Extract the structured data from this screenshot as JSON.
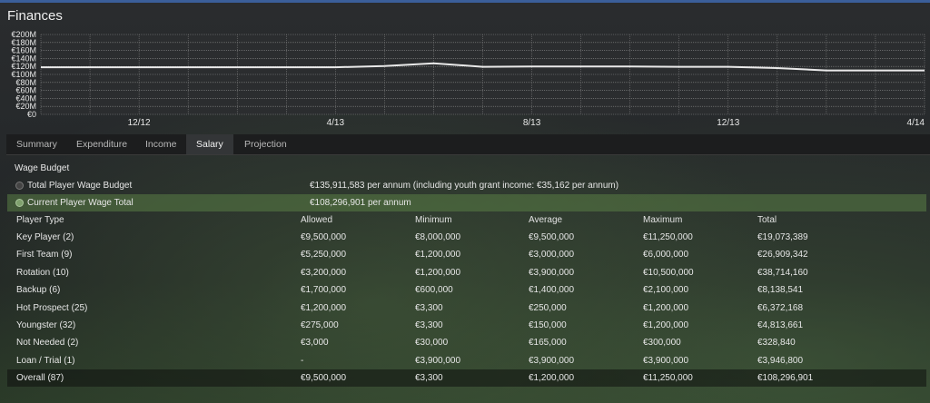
{
  "panel": {
    "title": "Finances"
  },
  "chart_data": {
    "type": "line",
    "title": "",
    "y_ticks": [
      "€200M",
      "€180M",
      "€160M",
      "€140M",
      "€120M",
      "€100M",
      "€80M",
      "€60M",
      "€40M",
      "€20M",
      "€0"
    ],
    "x_ticks": [
      "12/12",
      "4/13",
      "8/13",
      "12/13",
      "4/14"
    ],
    "ylim": [
      0,
      200
    ],
    "grid": true,
    "series": [
      {
        "values": [
          {
            "x": "2012-10",
            "y": 118
          },
          {
            "x": "2012-11",
            "y": 118
          },
          {
            "x": "2012-12",
            "y": 118
          },
          {
            "x": "2013-01",
            "y": 118
          },
          {
            "x": "2013-02",
            "y": 118
          },
          {
            "x": "2013-03",
            "y": 118
          },
          {
            "x": "2013-04",
            "y": 118
          },
          {
            "x": "2013-05",
            "y": 121
          },
          {
            "x": "2013-06",
            "y": 128
          },
          {
            "x": "2013-07",
            "y": 119
          },
          {
            "x": "2013-08",
            "y": 120
          },
          {
            "x": "2013-09",
            "y": 120
          },
          {
            "x": "2013-10",
            "y": 120
          },
          {
            "x": "2013-11",
            "y": 119
          },
          {
            "x": "2013-12",
            "y": 119
          },
          {
            "x": "2014-01",
            "y": 116
          },
          {
            "x": "2014-02",
            "y": 110
          },
          {
            "x": "2014-03",
            "y": 110
          },
          {
            "x": "2014-04",
            "y": 110
          }
        ]
      }
    ],
    "colors": {
      "line": "#e9e9e9",
      "grid": "#8a8a8a",
      "plot_bg": "#2b2d2f"
    }
  },
  "tabs": [
    {
      "label": "Summary",
      "active": false
    },
    {
      "label": "Expenditure",
      "active": false
    },
    {
      "label": "Income",
      "active": false
    },
    {
      "label": "Salary",
      "active": true
    },
    {
      "label": "Projection",
      "active": false
    }
  ],
  "wage_budget": {
    "title": "Wage Budget",
    "total_label": "Total Player Wage Budget",
    "total_value": "€135,911,583 per annum (including youth grant income: €35,162 per annum)",
    "current_label": "Current Player Wage Total",
    "current_value": "€108,296,901 per annum"
  },
  "table": {
    "headers": [
      "Player Type",
      "Allowed",
      "Minimum",
      "Average",
      "Maximum",
      "Total"
    ],
    "rows": [
      [
        "Key Player (2)",
        "€9,500,000",
        "€8,000,000",
        "€9,500,000",
        "€11,250,000",
        "€19,073,389"
      ],
      [
        "First Team (9)",
        "€5,250,000",
        "€1,200,000",
        "€3,000,000",
        "€6,000,000",
        "€26,909,342"
      ],
      [
        "Rotation (10)",
        "€3,200,000",
        "€1,200,000",
        "€3,900,000",
        "€10,500,000",
        "€38,714,160"
      ],
      [
        "Backup (6)",
        "€1,700,000",
        "€600,000",
        "€1,400,000",
        "€2,100,000",
        "€8,138,541"
      ],
      [
        "Hot Prospect (25)",
        "€1,200,000",
        "€3,300",
        "€250,000",
        "€1,200,000",
        "€6,372,168"
      ],
      [
        "Youngster (32)",
        "€275,000",
        "€3,300",
        "€150,000",
        "€1,200,000",
        "€4,813,661"
      ],
      [
        "Not Needed (2)",
        "€3,000",
        "€30,000",
        "€165,000",
        "€300,000",
        "€328,840"
      ],
      [
        "Loan / Trial (1)",
        "-",
        "€3,900,000",
        "€3,900,000",
        "€3,900,000",
        "€3,946,800"
      ]
    ],
    "overall": [
      "Overall (87)",
      "€9,500,000",
      "€3,300",
      "€1,200,000",
      "€11,250,000",
      "€108,296,901"
    ]
  },
  "colors": {
    "accent": "#3b5f9a",
    "highlight_row": "#5a7d46"
  }
}
